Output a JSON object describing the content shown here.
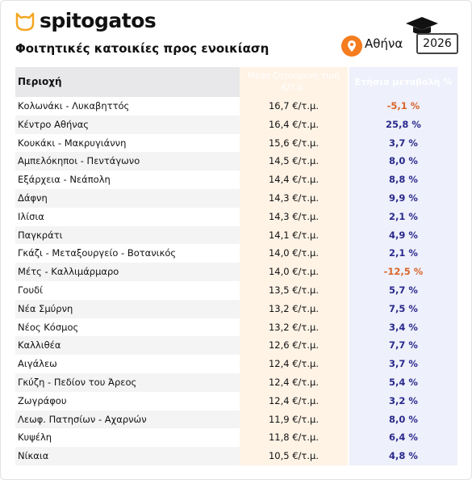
{
  "header": {
    "brand": "spitogatos",
    "title": "Φοιτητικές κατοικίες προς ενοικίαση",
    "city": "Αθήνα",
    "year": "2026"
  },
  "table": {
    "columns": [
      "Περιοχή",
      "Μέση ζητούμενη τιμή €/τ.μ.",
      "Ετήσια μεταβολή %"
    ],
    "rows": [
      [
        "Κολωνάκι - Λυκαβηττός",
        "16,7 €/τ.μ.",
        "-5,1 %"
      ],
      [
        "Κέντρο Αθήνας",
        "16,4 €/τ.μ.",
        "25,8 %"
      ],
      [
        "Κουκάκι - Μακρυγιάννη",
        "15,6 €/τ.μ.",
        "3,7 %"
      ],
      [
        "Αμπελόκηποι - Πεντάγωνο",
        "14,5 €/τ.μ.",
        "8,0 %"
      ],
      [
        "Εξάρχεια - Νεάπολη",
        "14,4 €/τ.μ.",
        "8,8 %"
      ],
      [
        "Δάφνη",
        "14,3 €/τ.μ.",
        "9,9 %"
      ],
      [
        "Ιλίσια",
        "14,3 €/τ.μ.",
        "2,1 %"
      ],
      [
        "Παγκράτι",
        "14,1 €/τ.μ.",
        "4,9 %"
      ],
      [
        "Γκάζι - Μεταξουργείο - Βοτανικός",
        "14,0 €/τ.μ.",
        "2,1 %"
      ],
      [
        "Μέτς - Καλλιμάρμαρο",
        "14,0 €/τ.μ.",
        "-12,5 %"
      ],
      [
        "Γουδί",
        "13,5 €/τ.μ.",
        "5,7 %"
      ],
      [
        "Νέα Σμύρνη",
        "13,2 €/τ.μ.",
        "7,5 %"
      ],
      [
        "Νέος Κόσμος",
        "13,2 €/τ.μ.",
        "3,4 %"
      ],
      [
        "Καλλιθέα",
        "12,6 €/τ.μ.",
        "7,7 %"
      ],
      [
        "Αιγάλεω",
        "12,4 €/τ.μ.",
        "3,7 %"
      ],
      [
        "Γκύζη - Πεδίον του Άρεος",
        "12,4 €/τ.μ.",
        "5,4 %"
      ],
      [
        "Ζωγράφου",
        "12,4 €/τ.μ.",
        "3,2 %"
      ],
      [
        "Λεωφ. Πατησίων - Αχαρνών",
        "11,9 €/τ.μ.",
        "8,0 %"
      ],
      [
        "Κυψέλη",
        "11,8 €/τ.μ.",
        "6,4 %"
      ],
      [
        "Νίκαια",
        "10,5 €/τ.μ.",
        "4,8 %"
      ]
    ]
  }
}
